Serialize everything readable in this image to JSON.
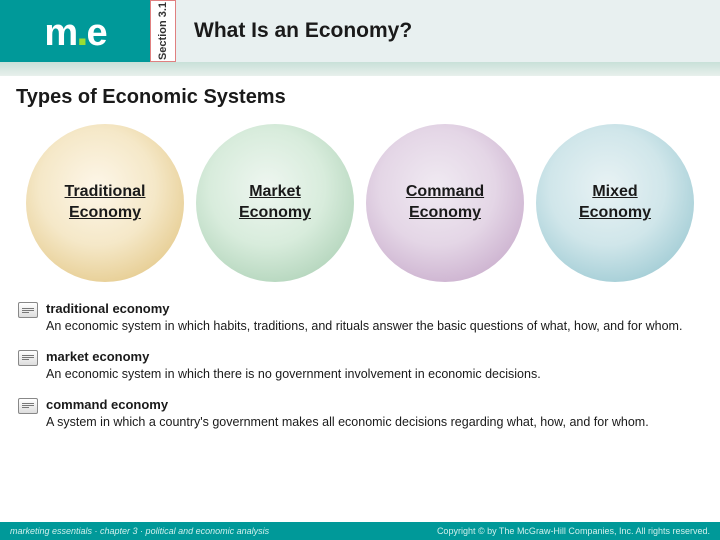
{
  "header": {
    "section_label": "Section 3.1",
    "title": "What Is an Economy?"
  },
  "subtitle": "Types of Economic Systems",
  "circles": [
    {
      "label": "Traditional\nEconomy",
      "bg": "radial-gradient(circle at 45% 40%, #fdf6e8 0%, #f5e8c8 45%, #e8d098 75%, #d8bc78 100%)"
    },
    {
      "label": "Market\nEconomy",
      "bg": "radial-gradient(circle at 45% 40%, #eef6f0 0%, #d8ecdc 45%, #b8d8c0 75%, #a0c8a8 100%)"
    },
    {
      "label": "Command\nEconomy",
      "bg": "radial-gradient(circle at 45% 40%, #f0eaf2 0%, #e4d6e6 45%, #cfb6d2 75%, #bfa0c2 100%)"
    },
    {
      "label": "Mixed\nEconomy",
      "bg": "radial-gradient(circle at 45% 40%, #e8f2f4 0%, #d0e6ea 45%, #a8d0d8 75%, #90c0c8 100%)"
    }
  ],
  "definitions": [
    {
      "term": "traditional economy",
      "text": "An economic system in which habits, traditions, and rituals answer the basic questions of what, how, and for whom."
    },
    {
      "term": "market economy",
      "text": "An economic system in which there is no government involvement in economic decisions."
    },
    {
      "term": "command economy",
      "text": "A system in which a country's government makes all economic decisions regarding what, how, and for whom."
    }
  ],
  "footer": {
    "left": "marketing essentials · chapter 3 · political and economic analysis",
    "right": "Copyright © by The McGraw-Hill Companies, Inc. All rights reserved."
  }
}
